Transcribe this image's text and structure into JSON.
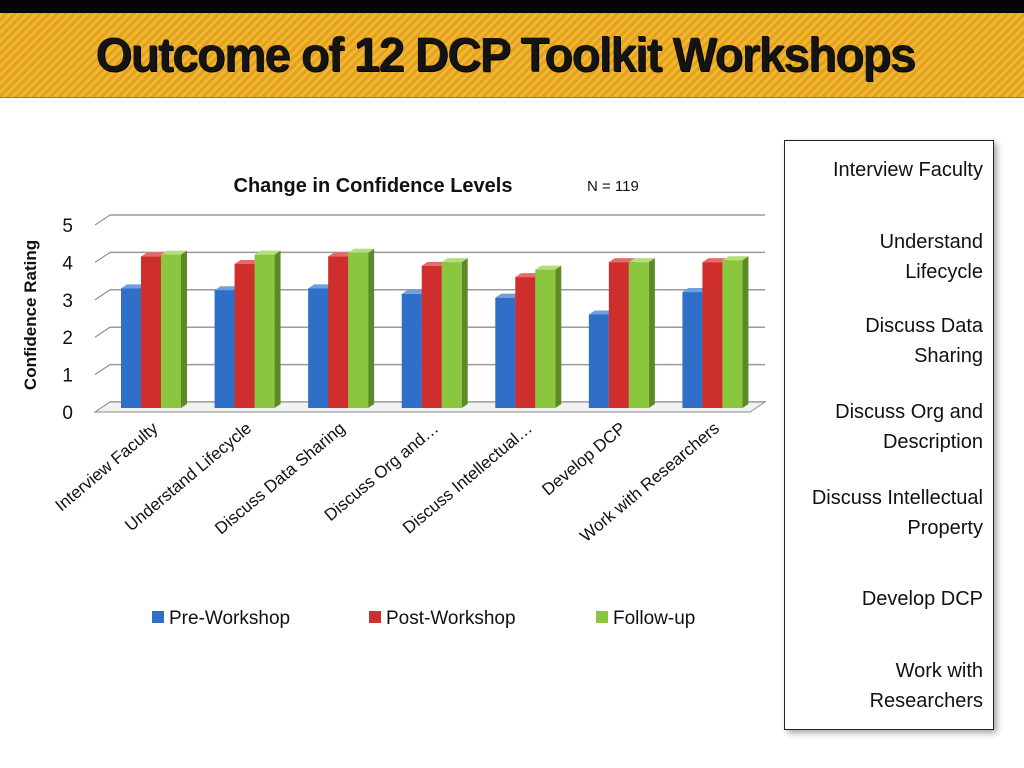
{
  "slide": {
    "title": "Outcome of  12  DCP Toolkit Workshops"
  },
  "sidebar": {
    "items": [
      {
        "lines": [
          "Interview Faculty"
        ]
      },
      {
        "lines": [
          "Understand",
          "Lifecycle"
        ]
      },
      {
        "lines": [
          "Discuss Data",
          "Sharing"
        ]
      },
      {
        "lines": [
          "Discuss Org and",
          "Description"
        ]
      },
      {
        "lines": [
          "Discuss Intellectual",
          "Property"
        ]
      },
      {
        "lines": [
          "Develop DCP"
        ]
      },
      {
        "lines": [
          "Work with",
          "Researchers"
        ]
      }
    ]
  },
  "colors": {
    "pre": "#2f6fc7",
    "post": "#cf2f2c",
    "follow": "#8bc63f",
    "axis": "#7f7f7f",
    "banner": "#f1b632"
  },
  "chart_data": {
    "type": "bar",
    "title": "Change in Confidence Levels",
    "annotation": "N = 119",
    "ylabel": "Confidence Rating",
    "xlabel": "",
    "ylim": [
      0,
      5
    ],
    "yticks": [
      "0",
      "1",
      "2",
      "3",
      "4",
      "5"
    ],
    "categories": [
      "Interview Faculty",
      "Understand Lifecycle",
      "Discuss Data Sharing",
      "Discuss Org and…",
      "Discuss Intellectual…",
      "Develop DCP",
      "Work with Researchers"
    ],
    "series": [
      {
        "name": "Pre-Workshop",
        "values": [
          3.2,
          3.15,
          3.2,
          3.05,
          2.95,
          2.5,
          3.1
        ]
      },
      {
        "name": "Post-Workshop",
        "values": [
          4.05,
          3.85,
          4.05,
          3.8,
          3.5,
          3.9,
          3.9
        ]
      },
      {
        "name": "Follow-up",
        "values": [
          4.1,
          4.1,
          4.15,
          3.9,
          3.7,
          3.9,
          3.95
        ]
      }
    ],
    "legend": "bottom",
    "grid": true
  }
}
